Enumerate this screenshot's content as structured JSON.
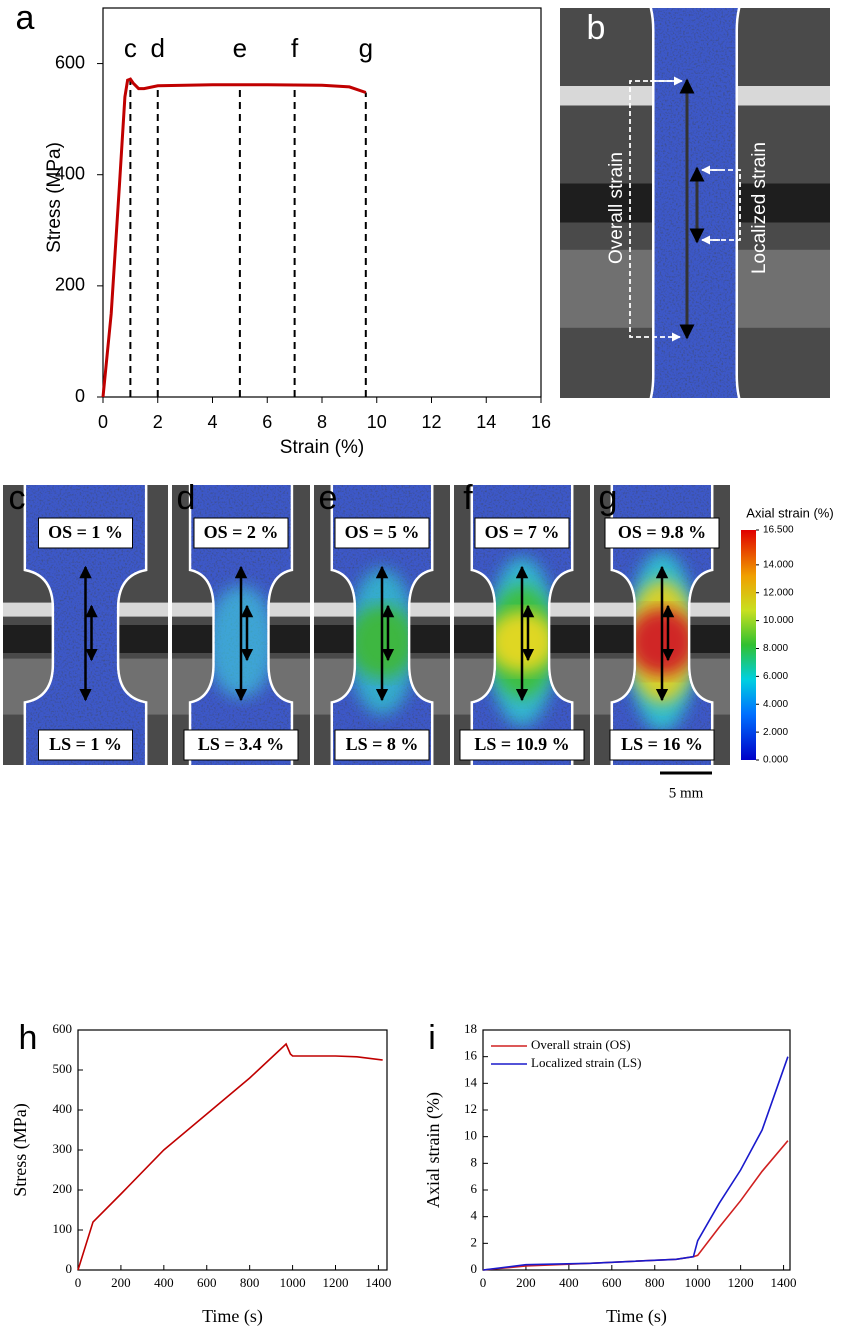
{
  "chart_data": [
    {
      "type": "line",
      "panel_label": "a",
      "x_label": "Strain (%)",
      "y_label": "Stress (MPa)",
      "xlim": [
        0,
        16
      ],
      "ylim": [
        0,
        700
      ],
      "xticks": [
        0,
        2,
        4,
        6,
        8,
        10,
        12,
        14,
        16
      ],
      "yticks": [
        0,
        200,
        400,
        600
      ],
      "x": [
        0,
        0.3,
        0.6,
        0.8,
        0.9,
        1.0,
        1.1,
        1.3,
        1.5,
        2,
        4,
        6,
        8,
        9,
        9.6
      ],
      "series": [
        {
          "color": "#c00000",
          "values": [
            0,
            150,
            380,
            540,
            570,
            572,
            565,
            555,
            555,
            560,
            562,
            562,
            561,
            558,
            548
          ]
        }
      ],
      "annotations": [
        {
          "label": "c",
          "x": 1
        },
        {
          "label": "d",
          "x": 2
        },
        {
          "label": "e",
          "x": 5
        },
        {
          "label": "f",
          "x": 7
        },
        {
          "label": "g",
          "x": 9.6
        }
      ]
    },
    {
      "type": "line",
      "panel_label": "h",
      "x_label": "Time (s)",
      "y_label": "Stress (MPa)",
      "xlim": [
        0,
        1440
      ],
      "ylim": [
        0,
        600
      ],
      "xticks": [
        0,
        200,
        400,
        600,
        800,
        1000,
        1200,
        1400
      ],
      "yticks": [
        0,
        100,
        200,
        300,
        400,
        500,
        600
      ],
      "x": [
        0,
        70,
        200,
        400,
        600,
        800,
        970,
        990,
        1000,
        1200,
        1300,
        1420
      ],
      "series": [
        {
          "color": "#c00000",
          "values": [
            0,
            120,
            190,
            300,
            390,
            480,
            565,
            540,
            535,
            535,
            533,
            525
          ]
        }
      ]
    },
    {
      "type": "line",
      "panel_label": "i",
      "x_label": "Time (s)",
      "y_label": "Axial strain (%)",
      "xlim": [
        0,
        1430
      ],
      "ylim": [
        0,
        18
      ],
      "xticks": [
        0,
        200,
        400,
        600,
        800,
        1000,
        1200,
        1400
      ],
      "yticks": [
        0,
        2,
        4,
        6,
        8,
        10,
        12,
        14,
        16,
        18
      ],
      "x": [
        0,
        200,
        500,
        900,
        980,
        1000,
        1100,
        1200,
        1300,
        1420
      ],
      "series": [
        {
          "name": "Overall strain (OS)",
          "color": "#d02020",
          "values": [
            0,
            0.3,
            0.5,
            0.8,
            1.0,
            1.1,
            3.2,
            5.2,
            7.4,
            9.7
          ]
        },
        {
          "name": "Localized strain (LS)",
          "color": "#1a1acc",
          "values": [
            0,
            0.4,
            0.5,
            0.8,
            1.0,
            2.2,
            5.0,
            7.5,
            10.5,
            16
          ]
        }
      ],
      "legend": "upper-left"
    }
  ],
  "panel_b": {
    "label": "b",
    "overall": "Overall strain",
    "localized": "Localized strain"
  },
  "images": [
    {
      "label": "c",
      "os": "OS = 1 %",
      "ls": "LS = 1 %"
    },
    {
      "label": "d",
      "os": "OS = 2 %",
      "ls": "LS = 3.4 %"
    },
    {
      "label": "e",
      "os": "OS = 5 %",
      "ls": "LS = 8 %"
    },
    {
      "label": "f",
      "os": "OS = 7 %",
      "ls": "LS = 10.9 %"
    },
    {
      "label": "g",
      "os": "OS = 9.8 %",
      "ls": "LS = 16 %"
    }
  ],
  "colorbar": {
    "title": "Axial strain (%)",
    "lim": [
      0,
      16.5
    ],
    "ticks": [
      {
        "value": 16.5,
        "label": "16.500"
      },
      {
        "value": 14,
        "label": "14.000"
      },
      {
        "value": 12,
        "label": "12.000"
      },
      {
        "value": 10,
        "label": "10.000"
      },
      {
        "value": 8,
        "label": "8.000"
      },
      {
        "value": 6,
        "label": "6.000"
      },
      {
        "value": 4,
        "label": "4.000"
      },
      {
        "value": 2,
        "label": "2.000"
      },
      {
        "value": 0,
        "label": "0.000"
      }
    ]
  },
  "scale_bar": "5 mm"
}
